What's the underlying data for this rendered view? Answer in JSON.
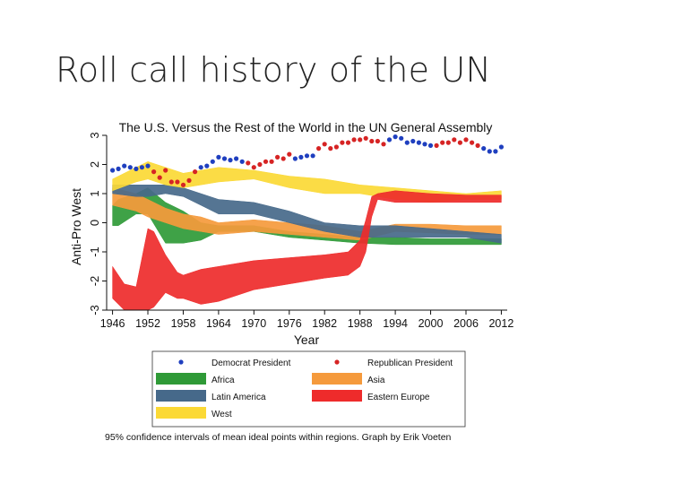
{
  "slide": {
    "title": "Roll call history of the UN"
  },
  "caption": "95% confidence intervals of mean ideal points within regions. Graph by Erik Voeten",
  "chart_data": {
    "type": "area",
    "title": "The U.S. Versus the Rest of the World in the UN General Assembly",
    "xlabel": "Year",
    "ylabel": "Anti-Pro West",
    "xlim": [
      1945,
      2013
    ],
    "ylim": [
      -3,
      3
    ],
    "xticks": [
      1946,
      1952,
      1958,
      1964,
      1970,
      1976,
      1982,
      1988,
      1994,
      2000,
      2006,
      2012
    ],
    "yticks": [
      -3,
      -2,
      -1,
      0,
      1,
      2,
      3
    ],
    "grid": false,
    "legend_position": "bottom",
    "legend": [
      {
        "label": "Democrat President",
        "kind": "marker",
        "color": "#1f3fbf"
      },
      {
        "label": "Republican President",
        "kind": "marker",
        "color": "#d62424"
      },
      {
        "label": "Africa",
        "kind": "band",
        "color": "#2f9a37"
      },
      {
        "label": "Asia",
        "kind": "band",
        "color": "#f59a3c"
      },
      {
        "label": "Latin America",
        "kind": "band",
        "color": "#46698a"
      },
      {
        "label": "Eastern Europe",
        "kind": "band",
        "color": "#ee2b2b"
      },
      {
        "label": "West",
        "kind": "band",
        "color": "#fbd935"
      }
    ],
    "bands": [
      {
        "name": "Africa",
        "color": "#2f9a37",
        "x": [
          1946,
          1947,
          1950,
          1952,
          1955,
          1958,
          1961,
          1964,
          1970,
          1976,
          1982,
          1988,
          1994,
          2000,
          2006,
          2012
        ],
        "lower": [
          -0.1,
          -0.1,
          0.3,
          0.3,
          -0.7,
          -0.7,
          -0.6,
          -0.3,
          -0.3,
          -0.5,
          -0.6,
          -0.7,
          -0.75,
          -0.75,
          -0.75,
          -0.75
        ],
        "upper": [
          0.6,
          0.8,
          1.0,
          1.2,
          0.7,
          0.4,
          0.0,
          -0.1,
          -0.1,
          -0.3,
          -0.4,
          -0.5,
          -0.5,
          -0.55,
          -0.55,
          -0.55
        ]
      },
      {
        "name": "Asia",
        "color": "#f59a3c",
        "x": [
          1946,
          1950,
          1952,
          1955,
          1958,
          1961,
          1964,
          1970,
          1976,
          1982,
          1988,
          1994,
          2000,
          2006,
          2012
        ],
        "lower": [
          0.6,
          0.4,
          0.2,
          0.0,
          -0.2,
          -0.3,
          -0.4,
          -0.3,
          -0.4,
          -0.5,
          -0.6,
          -0.3,
          -0.35,
          -0.4,
          -0.4
        ],
        "upper": [
          1.2,
          1.0,
          0.8,
          0.5,
          0.3,
          0.2,
          0.0,
          0.1,
          0.0,
          -0.1,
          -0.3,
          -0.05,
          -0.05,
          -0.1,
          -0.1
        ]
      },
      {
        "name": "Latin America",
        "color": "#46698a",
        "x": [
          1946,
          1950,
          1952,
          1955,
          1958,
          1961,
          1964,
          1970,
          1976,
          1982,
          1988,
          1994,
          2000,
          2006,
          2012
        ],
        "lower": [
          1.0,
          0.9,
          0.9,
          1.0,
          0.9,
          0.6,
          0.3,
          0.3,
          0.0,
          -0.3,
          -0.5,
          -0.5,
          -0.5,
          -0.5,
          -0.7
        ],
        "upper": [
          1.3,
          1.3,
          1.3,
          1.3,
          1.2,
          1.0,
          0.8,
          0.7,
          0.4,
          0.0,
          -0.1,
          -0.1,
          -0.2,
          -0.3,
          -0.4
        ]
      },
      {
        "name": "West",
        "color": "#fbd935",
        "x": [
          1946,
          1950,
          1952,
          1955,
          1958,
          1961,
          1964,
          1970,
          1976,
          1982,
          1988,
          1994,
          2000,
          2006,
          2012
        ],
        "lower": [
          1.1,
          1.4,
          1.5,
          1.3,
          1.2,
          1.3,
          1.4,
          1.5,
          1.2,
          1.0,
          1.0,
          0.8,
          0.7,
          0.8,
          0.8
        ],
        "upper": [
          1.5,
          1.9,
          2.1,
          1.9,
          1.7,
          1.8,
          1.9,
          1.8,
          1.6,
          1.5,
          1.3,
          1.2,
          1.1,
          1.0,
          1.1
        ]
      },
      {
        "name": "Eastern Europe",
        "color": "#ee2b2b",
        "x": [
          1946,
          1948,
          1950,
          1952,
          1953,
          1955,
          1957,
          1958,
          1961,
          1964,
          1970,
          1976,
          1982,
          1986,
          1988,
          1989,
          1990,
          1991,
          1994,
          2000,
          2006,
          2012
        ],
        "lower": [
          -2.6,
          -3.0,
          -3.0,
          -3.0,
          -2.9,
          -2.4,
          -2.6,
          -2.6,
          -2.8,
          -2.7,
          -2.3,
          -2.1,
          -1.9,
          -1.8,
          -1.5,
          -1.0,
          0.2,
          0.8,
          0.7,
          0.7,
          0.7,
          0.7
        ],
        "upper": [
          -1.5,
          -2.1,
          -2.2,
          -0.2,
          -0.3,
          -1.1,
          -1.7,
          -1.8,
          -1.6,
          -1.5,
          -1.3,
          -1.2,
          -1.1,
          -1.0,
          -0.6,
          0.1,
          0.9,
          1.0,
          1.1,
          1.0,
          0.95,
          0.95
        ]
      }
    ],
    "us_points": {
      "democrat": {
        "color": "#1f3fbf",
        "x": [
          1946,
          1947,
          1948,
          1949,
          1950,
          1951,
          1952,
          1961,
          1962,
          1963,
          1964,
          1965,
          1966,
          1967,
          1968,
          1977,
          1978,
          1979,
          1980,
          1993,
          1994,
          1995,
          1996,
          1997,
          1998,
          1999,
          2000,
          2009,
          2010,
          2011,
          2012
        ],
        "y": [
          1.8,
          1.85,
          1.95,
          1.9,
          1.85,
          1.9,
          1.95,
          1.9,
          1.95,
          2.1,
          2.25,
          2.2,
          2.15,
          2.2,
          2.1,
          2.2,
          2.25,
          2.3,
          2.3,
          2.85,
          2.95,
          2.9,
          2.75,
          2.8,
          2.75,
          2.7,
          2.65,
          2.55,
          2.45,
          2.45,
          2.6
        ]
      },
      "republican": {
        "color": "#d62424",
        "x": [
          1953,
          1954,
          1955,
          1956,
          1957,
          1958,
          1959,
          1960,
          1969,
          1970,
          1971,
          1972,
          1973,
          1974,
          1975,
          1976,
          1981,
          1982,
          1983,
          1984,
          1985,
          1986,
          1987,
          1988,
          1989,
          1990,
          1991,
          1992,
          2001,
          2002,
          2003,
          2004,
          2005,
          2006,
          2007,
          2008
        ],
        "y": [
          1.75,
          1.55,
          1.8,
          1.4,
          1.4,
          1.3,
          1.45,
          1.75,
          2.05,
          1.9,
          2.0,
          2.1,
          2.1,
          2.25,
          2.2,
          2.35,
          2.55,
          2.7,
          2.55,
          2.6,
          2.75,
          2.75,
          2.85,
          2.85,
          2.9,
          2.8,
          2.8,
          2.7,
          2.65,
          2.75,
          2.75,
          2.85,
          2.75,
          2.85,
          2.75,
          2.65
        ]
      }
    }
  }
}
